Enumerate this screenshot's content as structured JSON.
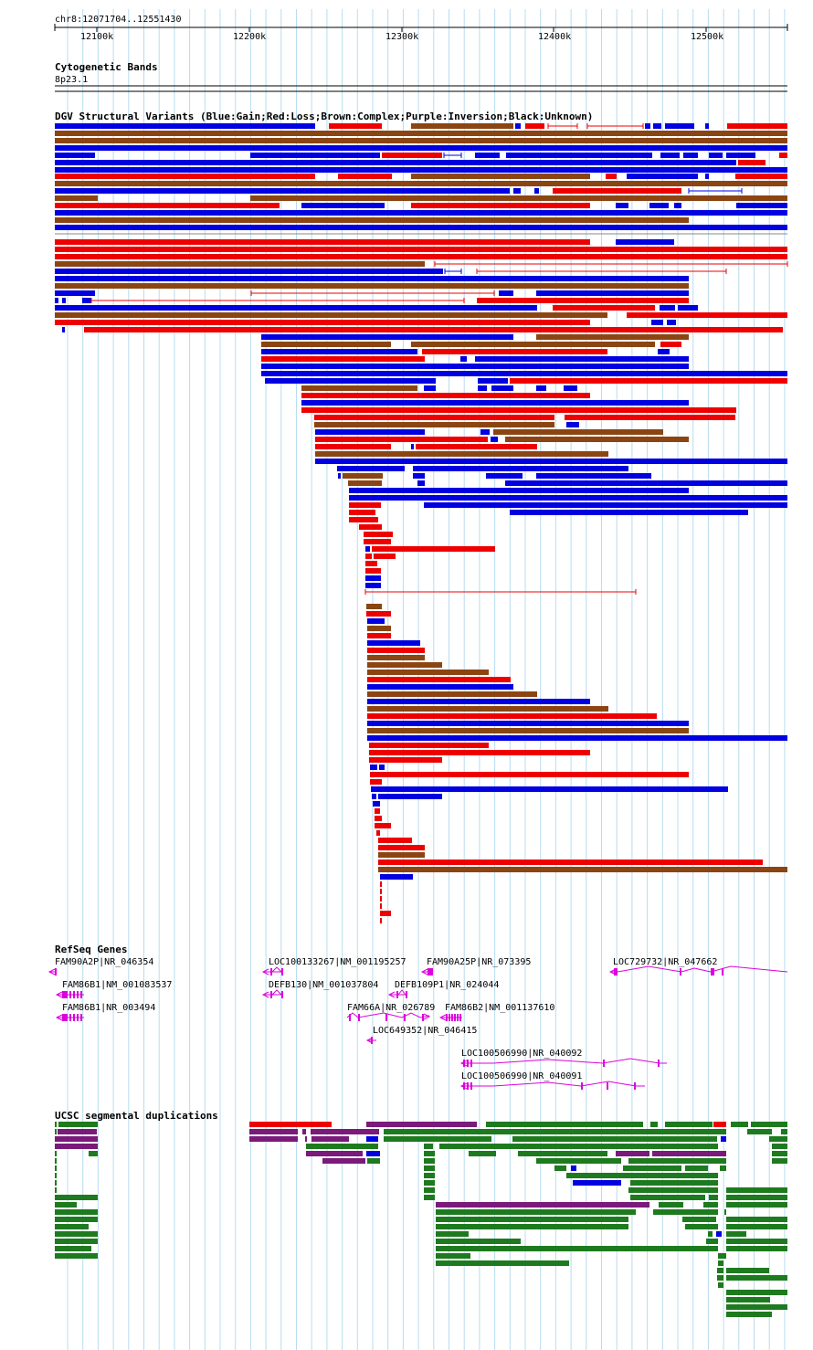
{
  "ruler": {
    "region": "chr8:12071704..12551430",
    "ticks": [
      "12100k",
      "12200k",
      "12300k",
      "12400k",
      "12500k"
    ]
  },
  "tracks": {
    "cytoband": {
      "title": "Cytogenetic Bands",
      "band": "8p23.1"
    },
    "dgv": {
      "title": "DGV Structural Variants (Blue:Gain;Red:Loss;Brown:Complex;Purple:Inversion;Black:Unknown)"
    },
    "refseq": {
      "title": "RefSeq Genes"
    },
    "segdup": {
      "title": "UCSC segmental duplications"
    }
  },
  "colors": {
    "gain": "#0000e0",
    "loss": "#ee0000",
    "complex": "#8b4513",
    "inversion": "#7a1a7a",
    "gene": "#dd00dd",
    "segdup_green": "#1e7a1e",
    "gridline": "#b8dcf0"
  },
  "genes": [
    {
      "label": "FAM90A2P|NR_046354"
    },
    {
      "label": "FAM86B1|NM_001083537"
    },
    {
      "label": "FAM86B1|NR_003494"
    },
    {
      "label": "LOC100133267|NM_001195257"
    },
    {
      "label": "DEFB130|NM_001037804"
    },
    {
      "label": "FAM90A25P|NR_073395"
    },
    {
      "label": "DEFB109P1|NR_024044"
    },
    {
      "label": "FAM66A|NR_026789"
    },
    {
      "label": "FAM86B2|NM_001137610"
    },
    {
      "label": "LOC649352|NR_046415"
    },
    {
      "label": "LOC729732|NR_047662"
    },
    {
      "label": "LOC100506990|NR_040092"
    },
    {
      "label": "LOC100506990|NR_040091"
    }
  ]
}
